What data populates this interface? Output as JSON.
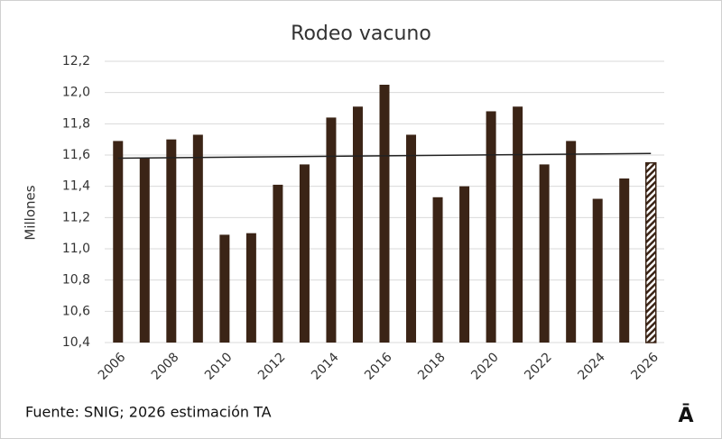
{
  "chart_data": {
    "type": "bar",
    "title": "Rodeo vacuno",
    "y_label": "Millones",
    "source": "Fuente: SNIG; 2026 estimación TA",
    "logo": "Ā",
    "categories": [
      "2006",
      null,
      "2008",
      null,
      "2010",
      null,
      "2012",
      null,
      "2014",
      null,
      "2016",
      null,
      "2018",
      null,
      "2020",
      null,
      "2022",
      null,
      "2024",
      null,
      "2026"
    ],
    "values": [
      11.69,
      11.58,
      11.7,
      11.73,
      11.09,
      11.1,
      11.41,
      11.54,
      11.84,
      11.91,
      12.05,
      11.73,
      11.33,
      11.4,
      11.88,
      11.91,
      11.54,
      11.69,
      11.32,
      11.45,
      11.55
    ],
    "color": "#3b2416",
    "hatched_index": 20,
    "trendline": [
      11.58,
      11.61
    ],
    "ylim": [
      10.4,
      12.2
    ],
    "yticks": [
      {
        "value": 10.4,
        "label": "10,4"
      },
      {
        "value": 10.6,
        "label": "10,6"
      },
      {
        "value": 10.8,
        "label": "10,8"
      },
      {
        "value": 11.0,
        "label": "11,0"
      },
      {
        "value": 11.2,
        "label": "11,2"
      },
      {
        "value": 11.4,
        "label": "11,4"
      },
      {
        "value": 11.6,
        "label": "11,6"
      },
      {
        "value": 11.8,
        "label": "11,8"
      },
      {
        "value": 12.0,
        "label": "12,0"
      },
      {
        "value": 12.2,
        "label": "12,2"
      }
    ],
    "grid": true
  }
}
